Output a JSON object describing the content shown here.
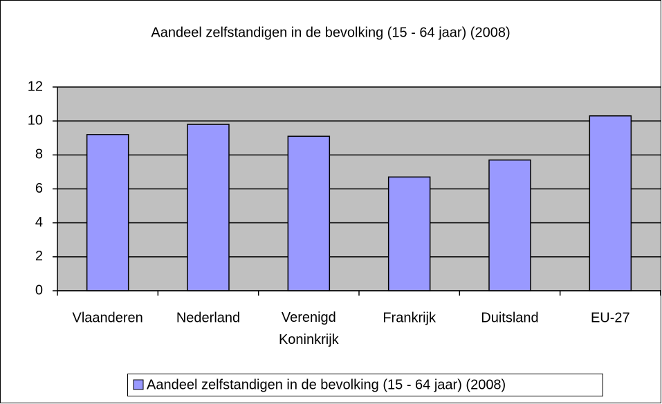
{
  "chart_data": {
    "type": "bar",
    "title": "Aandeel zelfstandigen in de bevolking (15 - 64 jaar) (2008)",
    "categories": [
      "Vlaanderen",
      "Nederland",
      "Verenigd Koninkrijk",
      "Frankrijk",
      "Duitsland",
      "EU-27"
    ],
    "series": [
      {
        "name": "Aandeel zelfstandigen in de bevolking (15 - 64 jaar) (2008)",
        "color": "#9999ff",
        "values": [
          9.2,
          9.8,
          9.1,
          6.7,
          7.7,
          10.3
        ]
      }
    ],
    "ylim": [
      0,
      12
    ],
    "yticks": [
      0,
      2,
      4,
      6,
      8,
      10,
      12
    ],
    "grid": true,
    "legend": "bottom"
  }
}
